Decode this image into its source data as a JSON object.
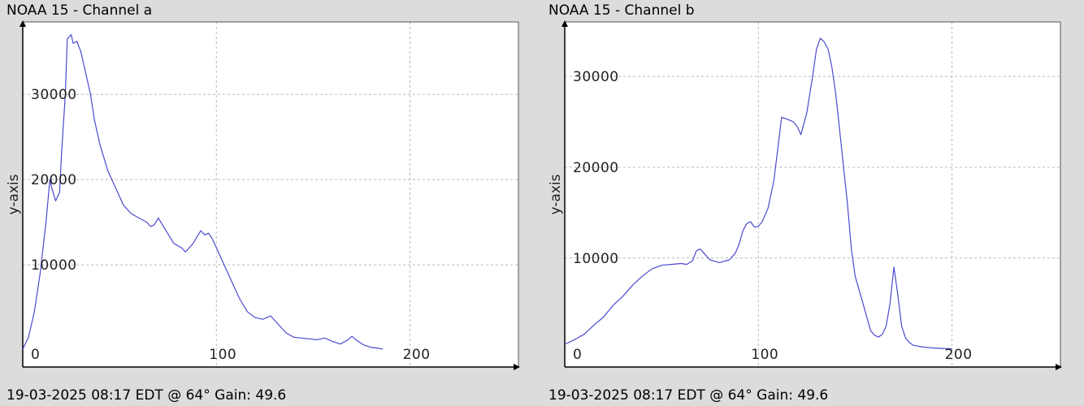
{
  "chart_data": [
    {
      "type": "line",
      "title": "NOAA 15 - Channel a",
      "footer": "19-03-2025 08:17 EDT @ 64° Gain: 49.6",
      "ylabel": "y-axis",
      "xlabel": "",
      "xlim": [
        0,
        256
      ],
      "ylim": [
        -2000,
        38500
      ],
      "xticks": [
        "0",
        "100",
        "200"
      ],
      "yticks": [
        "10000",
        "20000",
        "30000"
      ],
      "grid": true,
      "color": "#4a4acf",
      "series": [
        {
          "x": [
            0,
            3,
            6,
            9,
            12,
            14,
            15,
            17,
            19,
            20,
            22,
            23,
            25,
            26,
            28,
            30,
            32,
            35,
            37,
            40,
            44,
            48,
            52,
            56,
            60,
            64,
            66,
            68,
            70,
            74,
            78,
            82,
            84,
            86,
            88,
            90,
            92,
            94,
            96,
            98,
            100,
            104,
            108,
            112,
            116,
            120,
            124,
            128,
            132,
            136,
            140,
            144,
            148,
            152,
            156,
            160,
            164,
            168,
            170,
            172,
            176,
            180,
            184,
            186
          ],
          "y": [
            100,
            1500,
            4500,
            9000,
            15000,
            20000,
            19000,
            17500,
            18500,
            23000,
            30000,
            36500,
            37000,
            36000,
            36200,
            35000,
            33000,
            30000,
            27000,
            24000,
            21000,
            19000,
            17000,
            16000,
            15500,
            15000,
            14500,
            14700,
            15500,
            14000,
            12500,
            12000,
            11500,
            12000,
            12500,
            13300,
            14000,
            13500,
            13700,
            13000,
            12000,
            10000,
            8000,
            6000,
            4500,
            3800,
            3600,
            4000,
            3000,
            2000,
            1500,
            1400,
            1300,
            1200,
            1400,
            1000,
            700,
            1200,
            1600,
            1200,
            600,
            300,
            200,
            100
          ]
        }
      ]
    },
    {
      "type": "line",
      "title": "NOAA 15 - Channel b",
      "footer": "19-03-2025 08:17 EDT @ 64° Gain: 49.6",
      "ylabel": "y-axis",
      "xlabel": "",
      "xlim": [
        0,
        256
      ],
      "ylim": [
        -2000,
        36000
      ],
      "xticks": [
        "0",
        "100",
        "200"
      ],
      "yticks": [
        "10000",
        "20000",
        "30000"
      ],
      "grid": true,
      "color": "#4a4acf",
      "series": [
        {
          "x": [
            0,
            5,
            10,
            15,
            20,
            25,
            30,
            35,
            40,
            45,
            50,
            55,
            60,
            63,
            66,
            68,
            70,
            72,
            75,
            80,
            85,
            88,
            90,
            92,
            94,
            96,
            98,
            100,
            102,
            105,
            108,
            110,
            112,
            116,
            118,
            120,
            122,
            125,
            128,
            130,
            132,
            134,
            136,
            138,
            140,
            142,
            144,
            146,
            148,
            150,
            152,
            154,
            156,
            158,
            160,
            162,
            164,
            166,
            168,
            170,
            172,
            174,
            176,
            178,
            180,
            185,
            190,
            195,
            200
          ],
          "y": [
            500,
            1000,
            1600,
            2600,
            3500,
            4800,
            5800,
            7000,
            8000,
            8800,
            9200,
            9300,
            9400,
            9300,
            9700,
            10800,
            11000,
            10500,
            9800,
            9500,
            9800,
            10500,
            11500,
            13000,
            13800,
            14000,
            13400,
            13500,
            14000,
            15500,
            18500,
            22000,
            25500,
            25200,
            25000,
            24500,
            23600,
            26000,
            30000,
            33000,
            34200,
            33800,
            33000,
            31000,
            28000,
            24000,
            20000,
            16000,
            11000,
            8000,
            6500,
            5000,
            3500,
            2000,
            1500,
            1300,
            1600,
            2500,
            5000,
            9000,
            6000,
            2500,
            1200,
            700,
            400,
            200,
            100,
            50,
            0
          ]
        }
      ]
    }
  ]
}
